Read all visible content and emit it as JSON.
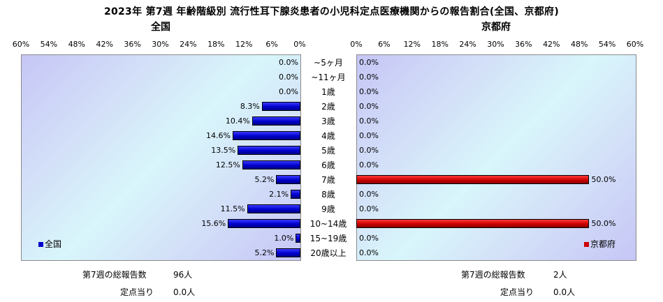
{
  "title": "2023年 第7週 年齢階級別 流行性耳下腺炎患者の小児科定点医療機関からの報告割合(全国、京都府)",
  "colors": {
    "national": "#0000cc",
    "kyoto": "#cc0000",
    "plot_bg": "#d4e2f8"
  },
  "chart_data": [
    {
      "type": "bar",
      "orientation": "horizontal-reversed",
      "title": "全国",
      "categories": [
        "~5ヶ月",
        "~11ヶ月",
        "1歳",
        "2歳",
        "3歳",
        "4歳",
        "5歳",
        "6歳",
        "7歳",
        "8歳",
        "9歳",
        "10~14歳",
        "15~19歳",
        "20歳以上"
      ],
      "series": [
        {
          "name": "全国",
          "values": [
            0.0,
            0.0,
            0.0,
            8.3,
            10.4,
            14.6,
            13.5,
            12.5,
            5.2,
            2.1,
            11.5,
            15.6,
            1.0,
            5.2
          ]
        }
      ],
      "value_labels": [
        "0.0%",
        "0.0%",
        "0.0%",
        "8.3%",
        "10.4%",
        "14.6%",
        "13.5%",
        "12.5%",
        "5.2%",
        "2.1%",
        "11.5%",
        "15.6%",
        "1.0%",
        "5.2%"
      ],
      "xlim": [
        0,
        60
      ],
      "xticks": [
        "60%",
        "54%",
        "48%",
        "42%",
        "36%",
        "30%",
        "24%",
        "18%",
        "12%",
        "6%",
        "0%"
      ],
      "legend": "bottom-left"
    },
    {
      "type": "bar",
      "orientation": "horizontal",
      "title": "京都府",
      "categories": [
        "~5ヶ月",
        "~11ヶ月",
        "1歳",
        "2歳",
        "3歳",
        "4歳",
        "5歳",
        "6歳",
        "7歳",
        "8歳",
        "9歳",
        "10~14歳",
        "15~19歳",
        "20歳以上"
      ],
      "series": [
        {
          "name": "京都府",
          "values": [
            0.0,
            0.0,
            0.0,
            0.0,
            0.0,
            0.0,
            0.0,
            0.0,
            50.0,
            0.0,
            0.0,
            50.0,
            0.0,
            0.0
          ]
        }
      ],
      "value_labels": [
        "0.0%",
        "0.0%",
        "0.0%",
        "0.0%",
        "0.0%",
        "0.0%",
        "0.0%",
        "0.0%",
        "50.0%",
        "0.0%",
        "0.0%",
        "50.0%",
        "0.0%",
        "0.0%"
      ],
      "xlim": [
        0,
        60
      ],
      "xticks": [
        "0%",
        "6%",
        "12%",
        "18%",
        "24%",
        "30%",
        "36%",
        "42%",
        "48%",
        "54%",
        "60%"
      ],
      "legend": "bottom-right"
    }
  ],
  "footer": {
    "left": {
      "total_label": "第7週の総報告数",
      "total_value": "96人",
      "per_label": "定点当り",
      "per_value": "0.0人"
    },
    "right": {
      "total_label": "第7週の総報告数",
      "total_value": "2人",
      "per_label": "定点当り",
      "per_value": "0.0人"
    }
  }
}
